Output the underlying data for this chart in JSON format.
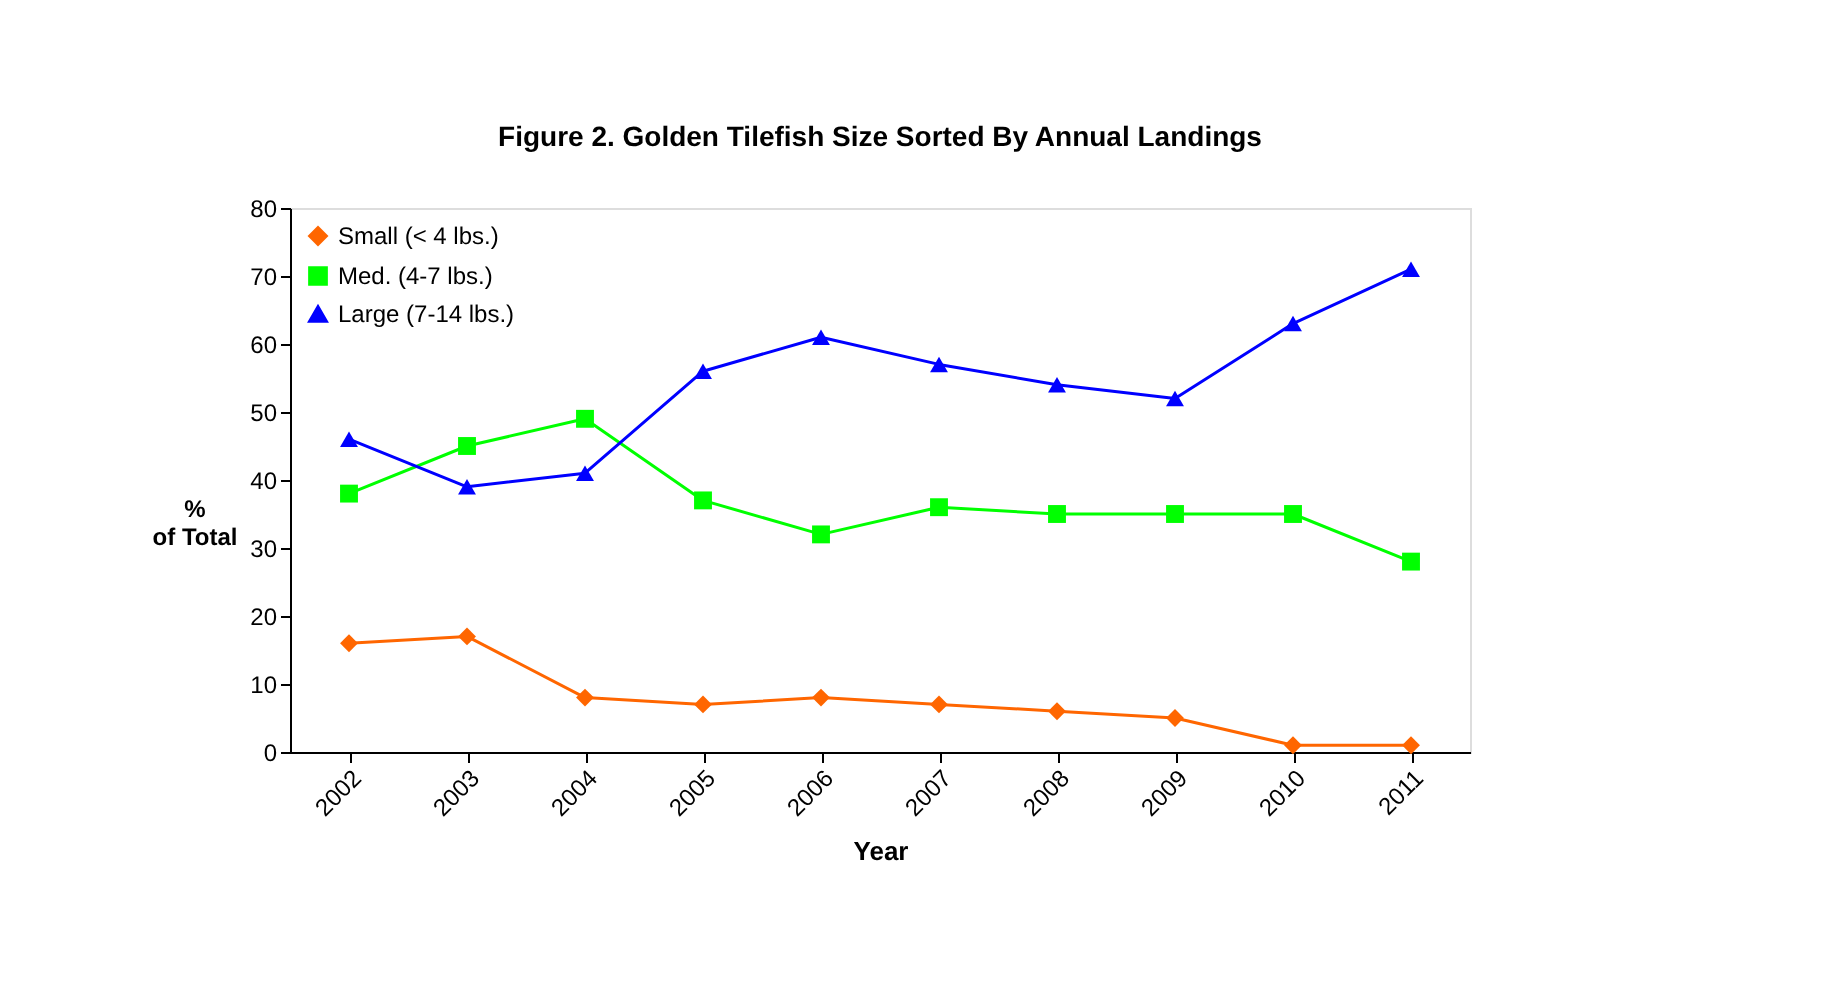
{
  "chart_data": {
    "type": "line",
    "title": "Figure 2. Golden Tilefish Size Sorted By Annual Landings",
    "xlabel": "Year",
    "ylabel": "% of Total",
    "categories": [
      "2002",
      "2003",
      "2004",
      "2005",
      "2006",
      "2007",
      "2008",
      "2009",
      "2010",
      "2011"
    ],
    "series": [
      {
        "name": "Small (< 4 lbs.)",
        "color": "#ff6600",
        "marker": "diamond",
        "values": [
          16,
          17,
          8,
          7,
          8,
          7,
          6,
          5,
          1,
          1
        ]
      },
      {
        "name": "Med. (4-7 lbs.)",
        "color": "#00ff00",
        "marker": "square",
        "values": [
          38,
          45,
          49,
          37,
          32,
          36,
          35,
          35,
          35,
          28
        ]
      },
      {
        "name": "Large (7-14 lbs.)",
        "color": "#0000ff",
        "marker": "triangle",
        "values": [
          46,
          39,
          41,
          56,
          61,
          57,
          54,
          52,
          63,
          71
        ]
      }
    ],
    "ylim": [
      0,
      80
    ],
    "yticks": [
      0,
      10,
      20,
      30,
      40,
      50,
      60,
      70,
      80
    ],
    "grid": false,
    "legend": "top left",
    "line_style": "solid"
  }
}
